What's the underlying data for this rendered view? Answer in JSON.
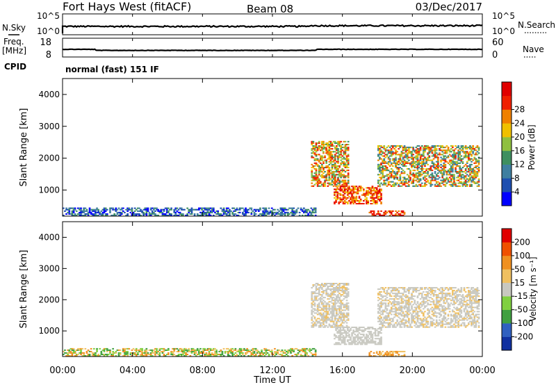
{
  "header": {
    "station": "Fort Hays West (fitACF)",
    "beam": "Beam 08",
    "date": "03/Dec/2017"
  },
  "noise_panel": {
    "left_label": "N.Sky",
    "left_ticks": [
      "10^5",
      "10^0"
    ],
    "right_label": "N.Search",
    "right_ticks": [
      "10^5",
      "10^0"
    ]
  },
  "freq_panel": {
    "left_label_1": "Freq.",
    "left_label_2": "[MHz]",
    "left_ticks": [
      "18",
      "8"
    ],
    "right_label": "Nave",
    "right_ticks": [
      "60",
      "0"
    ]
  },
  "cpid": {
    "label": "CPID",
    "value": "normal (fast) 151 IF"
  },
  "x_axis": {
    "title": "Time UT",
    "ticks": [
      "00:00",
      "04:00",
      "08:00",
      "12:00",
      "16:00",
      "20:00",
      "00:00"
    ]
  },
  "chart_data": [
    {
      "type": "heatmap",
      "quantity": "power",
      "ylabel": "Slant Range [km]",
      "yticks": [
        1000,
        2000,
        3000,
        4000
      ],
      "ylim": [
        180,
        4500
      ],
      "xlim_hours": [
        0,
        24
      ],
      "colorbar": {
        "label": "Power [dB]",
        "ticks": [
          "4",
          "8",
          "12",
          "16",
          "20",
          "24",
          "28"
        ],
        "colors": [
          "#0000ff",
          "#1e4fb0",
          "#3f7fa0",
          "#3e8f60",
          "#8fc040",
          "#f0c000",
          "#f08000",
          "#f02000",
          "#e00000"
        ]
      },
      "features": [
        {
          "t0": 0.0,
          "t1": 14.5,
          "r0": 180,
          "r1": 420,
          "density": 0.55,
          "levels": [
            0,
            1,
            2,
            3
          ]
        },
        {
          "t0": 14.2,
          "t1": 16.3,
          "r0": 1100,
          "r1": 2500,
          "density": 0.6,
          "levels": [
            3,
            4,
            5,
            6,
            7
          ]
        },
        {
          "t0": 15.5,
          "t1": 18.2,
          "r0": 550,
          "r1": 1100,
          "density": 0.6,
          "levels": [
            5,
            6,
            7,
            8
          ]
        },
        {
          "t0": 18.0,
          "t1": 23.8,
          "r0": 1100,
          "r1": 2400,
          "density": 0.55,
          "levels": [
            2,
            3,
            4,
            5,
            6,
            7
          ]
        },
        {
          "t0": 17.5,
          "t1": 19.5,
          "r0": 180,
          "r1": 330,
          "density": 0.6,
          "levels": [
            6,
            7,
            8
          ]
        }
      ]
    },
    {
      "type": "heatmap",
      "quantity": "velocity",
      "ylabel": "Slant Range [km]",
      "yticks": [
        1000,
        2000,
        3000,
        4000
      ],
      "ylim": [
        180,
        4500
      ],
      "xlim_hours": [
        0,
        24
      ],
      "colorbar": {
        "label": "Velocity [m s⁻¹]",
        "ticks": [
          "200",
          "100",
          "50",
          "15",
          "-15",
          "-50",
          "-100",
          "-200"
        ],
        "colors": [
          "#1030a0",
          "#3060c0",
          "#40a040",
          "#80d040",
          "#c8c8c0",
          "#f0c060",
          "#f09020",
          "#f05000",
          "#e00000"
        ]
      },
      "features": [
        {
          "t0": 0.0,
          "t1": 14.5,
          "r0": 180,
          "r1": 420,
          "density": 0.55,
          "levels": [
            2,
            3,
            5,
            6
          ]
        },
        {
          "t0": 14.2,
          "t1": 16.3,
          "r0": 1100,
          "r1": 2500,
          "density": 0.6,
          "levels": [
            4,
            4,
            4,
            5
          ]
        },
        {
          "t0": 15.5,
          "t1": 18.2,
          "r0": 550,
          "r1": 1100,
          "density": 0.6,
          "levels": [
            4,
            4,
            4
          ]
        },
        {
          "t0": 18.0,
          "t1": 23.8,
          "r0": 1100,
          "r1": 2400,
          "density": 0.55,
          "levels": [
            4,
            4,
            4,
            5
          ]
        },
        {
          "t0": 17.5,
          "t1": 19.5,
          "r0": 180,
          "r1": 330,
          "density": 0.6,
          "levels": [
            5,
            6
          ]
        }
      ]
    }
  ]
}
